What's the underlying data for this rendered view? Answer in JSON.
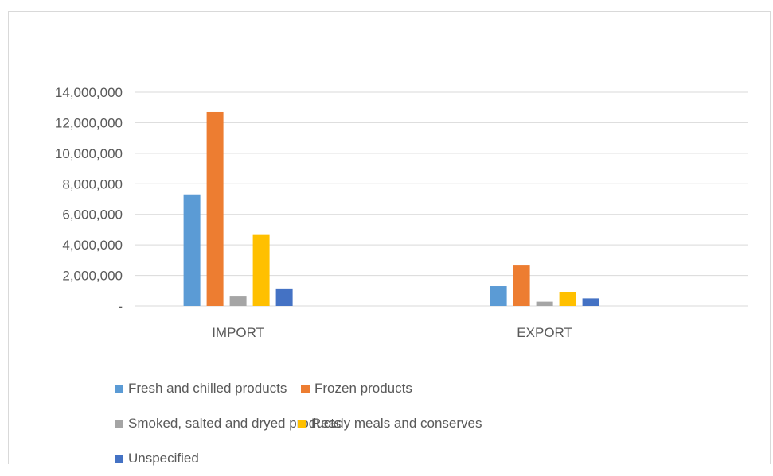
{
  "chart_data": {
    "type": "bar",
    "title": "",
    "xlabel": "",
    "ylabel": "",
    "categories": [
      "IMPORT",
      "EXPORT"
    ],
    "ylim": [
      0,
      14000000
    ],
    "yticks": [
      {
        "value": 0,
        "label": "-"
      },
      {
        "value": 2000000,
        "label": "2,000,000"
      },
      {
        "value": 4000000,
        "label": "4,000,000"
      },
      {
        "value": 6000000,
        "label": "6,000,000"
      },
      {
        "value": 8000000,
        "label": "8,000,000"
      },
      {
        "value": 10000000,
        "label": "10,000,000"
      },
      {
        "value": 12000000,
        "label": "12,000,000"
      },
      {
        "value": 14000000,
        "label": "14,000,000"
      }
    ],
    "grid": true,
    "legend_position": "bottom",
    "series": [
      {
        "name": "Fresh and chilled products",
        "color": "#5b9bd5",
        "values": [
          7300000,
          1300000
        ]
      },
      {
        "name": "Frozen products",
        "color": "#ed7d31",
        "values": [
          12700000,
          2650000
        ]
      },
      {
        "name": "Smoked, salted and dryed products",
        "color": "#a5a5a5",
        "values": [
          620000,
          280000
        ]
      },
      {
        "name": "Ready meals and conserves",
        "color": "#ffc000",
        "values": [
          4650000,
          900000
        ]
      },
      {
        "name": "Unspecified",
        "color": "#4472c4",
        "values": [
          1100000,
          500000
        ]
      }
    ]
  }
}
